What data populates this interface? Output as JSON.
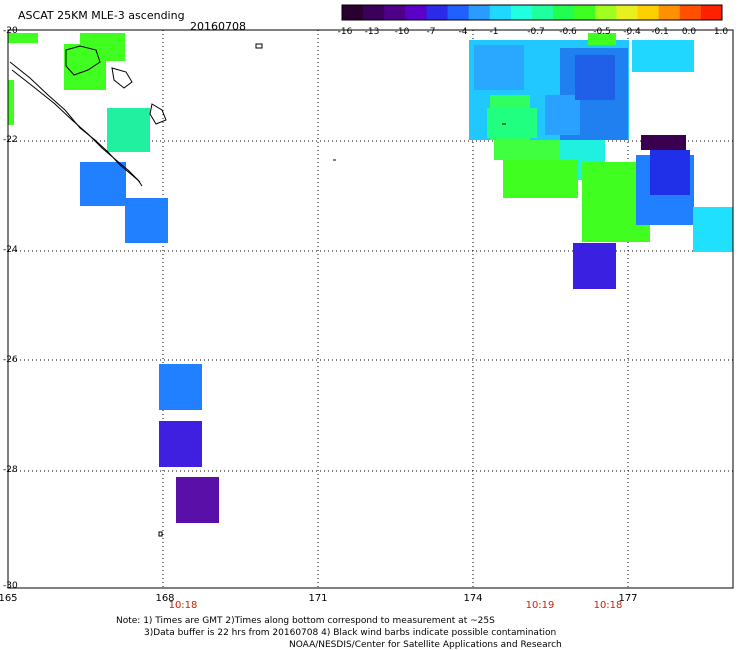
{
  "header": {
    "title": "ASCAT 25KM MLE-3 ascending",
    "date": "20160708"
  },
  "colorbar": {
    "labels": [
      "-16",
      "-13",
      "-10",
      "-7",
      "-4",
      "-1",
      "-0.7",
      "-0.6",
      "-0.5",
      "-0.4",
      "-0.1",
      "0.0",
      "1.0"
    ],
    "colors": [
      "#2a0030",
      "#3a005a",
      "#4d0088",
      "#5a00c8",
      "#2a2ae8",
      "#2060ff",
      "#2a9cff",
      "#20d8ff",
      "#20ffe0",
      "#20ffa0",
      "#20ff50",
      "#40ff20",
      "#a0ff20",
      "#e8f020",
      "#ffd000",
      "#ff9000",
      "#ff5000",
      "#ff2000"
    ]
  },
  "axes": {
    "lat_labels": [
      "-20",
      "-22",
      "-24",
      "-26",
      "-28",
      "-30"
    ],
    "lon_labels": [
      "165",
      "168",
      "171",
      "174",
      "177"
    ],
    "time_labels": [
      "10:18",
      "10:19",
      "10:18"
    ]
  },
  "notes": {
    "line1": "Note: 1) Times are GMT 2)Times along bottom correspond to measurement at ~25S",
    "line2": "3)Data buffer is 22 hrs from 20160708 4) Black wind barbs indicate possible contamination",
    "line3": "NOAA/NESDIS/Center for Satellite Applications and Research"
  }
}
